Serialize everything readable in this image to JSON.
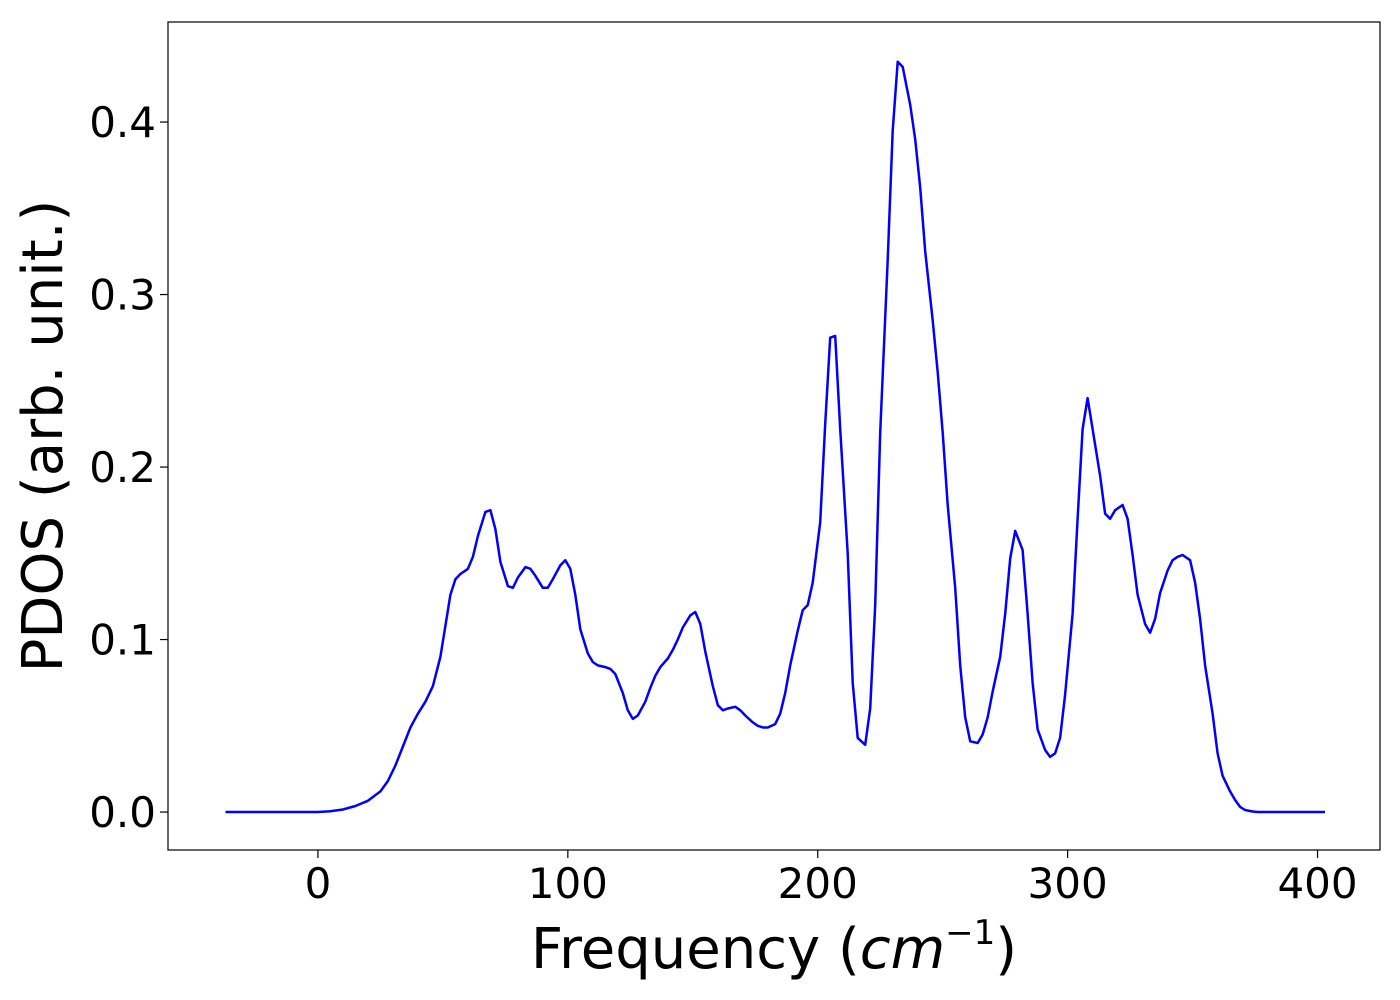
{
  "chart_data": {
    "type": "line",
    "xlabel": "Frequency",
    "xlabel_unit": "cm",
    "xlabel_unit_exponent": "−1",
    "ylabel": "PDOS (arb. unit.)",
    "xlim": [
      -60,
      425
    ],
    "ylim": [
      -0.022,
      0.458
    ],
    "xticks": [
      0,
      100,
      200,
      300,
      400
    ],
    "yticks": [
      0.0,
      0.1,
      0.2,
      0.3,
      0.4
    ],
    "xtick_labels": [
      "0",
      "100",
      "200",
      "300",
      "400"
    ],
    "ytick_labels": [
      "0.0",
      "0.1",
      "0.2",
      "0.3",
      "0.4"
    ],
    "grid": false,
    "series": [
      {
        "color": "#0000ff",
        "x": [
          -37,
          -20,
          0,
          5,
          10,
          15,
          20,
          25,
          28,
          31,
          34,
          37,
          40,
          43,
          46,
          49,
          51,
          53,
          55,
          57,
          60,
          62,
          64,
          67,
          69,
          71,
          73,
          76,
          78,
          80,
          83,
          85,
          87,
          90,
          92,
          94,
          97,
          99,
          101,
          103,
          105,
          108,
          110,
          112,
          115,
          117,
          119,
          122,
          124,
          126,
          128,
          131,
          133,
          135,
          137,
          140,
          142,
          144,
          146,
          149,
          151,
          153,
          155,
          158,
          160,
          162,
          164,
          167,
          169,
          171,
          174,
          176,
          178,
          180,
          183,
          185,
          187,
          189,
          192,
          194,
          196,
          198,
          201,
          203,
          205,
          207,
          209,
          212,
          214,
          216,
          219,
          221,
          223,
          225,
          228,
          230,
          232,
          234,
          237,
          239,
          241,
          243,
          246,
          248,
          250,
          252,
          255,
          257,
          259,
          261,
          264,
          266,
          268,
          270,
          273,
          275,
          277,
          279,
          282,
          284,
          286,
          288,
          291,
          293,
          295,
          297,
          299,
          302,
          304,
          306,
          308,
          310,
          313,
          315,
          317,
          319,
          322,
          324,
          326,
          328,
          331,
          333,
          335,
          337,
          340,
          342,
          344,
          346,
          349,
          351,
          353,
          355,
          358,
          360,
          362,
          365,
          367,
          369,
          371,
          374,
          376,
          380,
          390,
          403
        ],
        "y": [
          0,
          0,
          0,
          0.0005,
          0.0015,
          0.0035,
          0.0065,
          0.012,
          0.018,
          0.027,
          0.038,
          0.049,
          0.057,
          0.064,
          0.073,
          0.09,
          0.108,
          0.126,
          0.135,
          0.138,
          0.141,
          0.148,
          0.16,
          0.174,
          0.175,
          0.164,
          0.145,
          0.131,
          0.13,
          0.136,
          0.142,
          0.141,
          0.137,
          0.13,
          0.13,
          0.135,
          0.143,
          0.146,
          0.141,
          0.126,
          0.106,
          0.092,
          0.087,
          0.085,
          0.084,
          0.083,
          0.08,
          0.069,
          0.059,
          0.054,
          0.056,
          0.064,
          0.072,
          0.079,
          0.084,
          0.089,
          0.094,
          0.1,
          0.107,
          0.114,
          0.116,
          0.109,
          0.093,
          0.073,
          0.062,
          0.059,
          0.06,
          0.061,
          0.059,
          0.056,
          0.052,
          0.05,
          0.049,
          0.049,
          0.051,
          0.057,
          0.069,
          0.085,
          0.105,
          0.117,
          0.12,
          0.133,
          0.168,
          0.225,
          0.275,
          0.276,
          0.222,
          0.15,
          0.075,
          0.043,
          0.039,
          0.06,
          0.12,
          0.22,
          0.32,
          0.395,
          0.435,
          0.432,
          0.41,
          0.39,
          0.362,
          0.325,
          0.285,
          0.255,
          0.22,
          0.178,
          0.13,
          0.085,
          0.055,
          0.041,
          0.04,
          0.045,
          0.055,
          0.07,
          0.09,
          0.115,
          0.147,
          0.163,
          0.152,
          0.115,
          0.075,
          0.048,
          0.036,
          0.032,
          0.034,
          0.043,
          0.068,
          0.115,
          0.17,
          0.222,
          0.24,
          0.222,
          0.195,
          0.173,
          0.17,
          0.175,
          0.178,
          0.17,
          0.149,
          0.126,
          0.109,
          0.104,
          0.112,
          0.127,
          0.14,
          0.146,
          0.148,
          0.149,
          0.146,
          0.133,
          0.112,
          0.085,
          0.057,
          0.034,
          0.021,
          0.012,
          0.007,
          0.003,
          0.0012,
          0.0003,
          0,
          0,
          0,
          0
        ]
      }
    ]
  }
}
